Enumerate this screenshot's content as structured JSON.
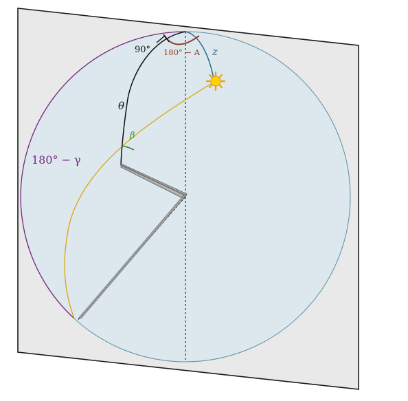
{
  "diagram": {
    "labels": {
      "right_angle": "90°",
      "azimuth_supplement": "180° − A",
      "zenith": "z",
      "theta": "θ",
      "beta": "β",
      "gamma_supplement": "180° − γ"
    },
    "colors": {
      "plane_fill": "#e9e9e9",
      "plane_stroke": "#1a1a1a",
      "sphere_fill": "#dce8ee",
      "sphere_stroke": "#5b8fa3",
      "great_circle_left": "#7a2a82",
      "sun_path": "#e0a818",
      "zenith_arc": "#2d6a8c",
      "azimuth_arc": "#8a3b1c",
      "theta_arc": "#111111",
      "beta_arc": "#3f8a3a",
      "gnomon": "#6d6d6d",
      "sun_core": "#ffd400",
      "sun_rays": "#f2a000"
    },
    "icons": {
      "sun": "sun-icon"
    }
  }
}
